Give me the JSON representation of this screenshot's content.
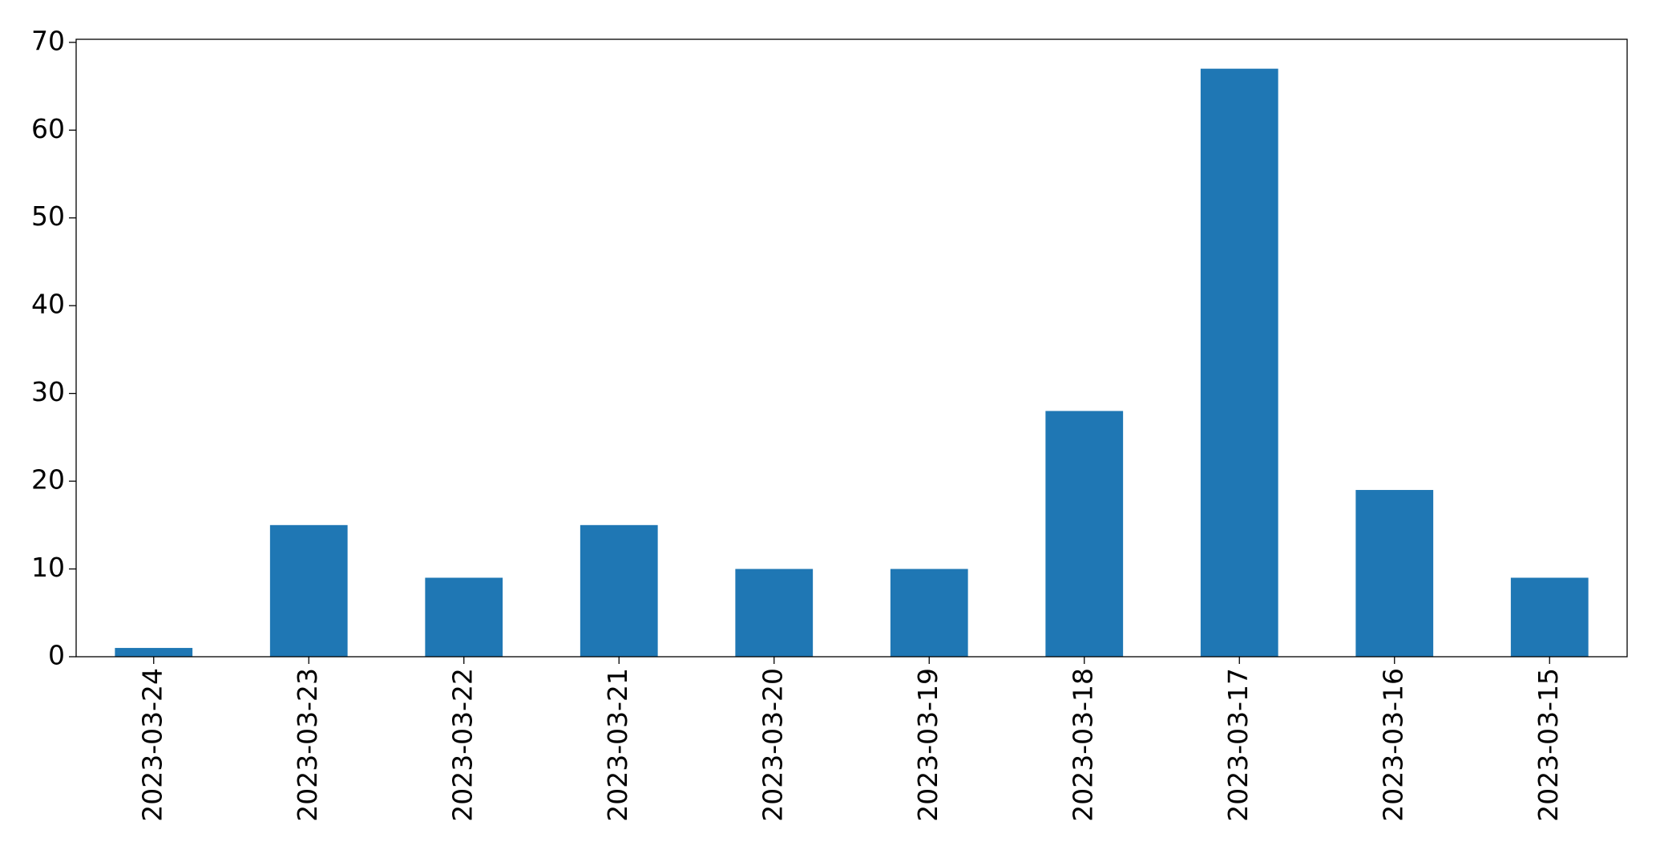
{
  "chart_data": {
    "type": "bar",
    "categories": [
      "2023-03-24",
      "2023-03-23",
      "2023-03-22",
      "2023-03-21",
      "2023-03-20",
      "2023-03-19",
      "2023-03-18",
      "2023-03-17",
      "2023-03-16",
      "2023-03-15"
    ],
    "values": [
      1,
      15,
      9,
      15,
      10,
      10,
      28,
      67,
      19,
      9
    ],
    "color": "#1f77b4",
    "ylim": [
      0,
      70.35
    ],
    "yticks": [
      0,
      10,
      20,
      30,
      40,
      50,
      60,
      70
    ],
    "grid": false
  }
}
